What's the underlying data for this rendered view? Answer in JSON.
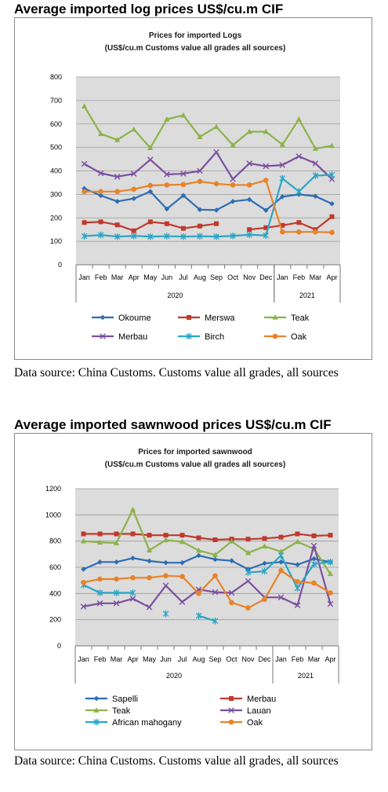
{
  "sections": [
    {
      "heading": "Average imported log prices US$/cu.m CIF",
      "source": "Data source: China Customs. Customs value all grades, all sources",
      "chart_data": {
        "type": "line",
        "title": "Prices for imported Logs",
        "subtitle": "(US$/cu.m Customs value all grades all sources)",
        "categories": [
          "Jan",
          "Feb",
          "Mar",
          "Apr",
          "May",
          "Jun",
          "Jul",
          "Aug",
          "Sep",
          "Oct",
          "Nov",
          "Dec",
          "Jan",
          "Feb",
          "Mar",
          "Apr"
        ],
        "year_groups": [
          {
            "label": "2020",
            "start": 0,
            "end": 11
          },
          {
            "label": "2021",
            "start": 12,
            "end": 15
          }
        ],
        "ylim": [
          0,
          800
        ],
        "yticks": [
          "0",
          "100",
          "200",
          "300",
          "400",
          "500",
          "600",
          "700",
          "800"
        ],
        "grid": true,
        "legend_position": "bottom",
        "series": [
          {
            "name": "Okoume",
            "color": "#2e6db4",
            "marker": "diamond",
            "values": [
              325,
              295,
              270,
              282,
              312,
              238,
              295,
              235,
              233,
              270,
              278,
              232,
              290,
              300,
              292,
              260
            ]
          },
          {
            "name": "Merswa",
            "color": "#c0392b",
            "marker": "square",
            "values": [
              180,
              183,
              170,
              145,
              183,
              175,
              155,
              165,
              175,
              null,
              150,
              158,
              168,
              180,
              150,
              205
            ]
          },
          {
            "name": "Teak",
            "color": "#8bb34a",
            "marker": "triangle",
            "values": [
              675,
              558,
              532,
              577,
              498,
              620,
              637,
              545,
              588,
              510,
              567,
              567,
              512,
              620,
              495,
              507
            ]
          },
          {
            "name": "Merbau",
            "color": "#7b4fa0",
            "marker": "x",
            "values": [
              430,
              390,
              375,
              388,
              448,
              385,
              388,
              400,
              480,
              365,
              432,
              420,
              425,
              462,
              432,
              365
            ]
          },
          {
            "name": "Birch",
            "color": "#2aa5c4",
            "marker": "star",
            "values": [
              122,
              127,
              120,
              123,
              120,
              122,
              120,
              122,
              120,
              123,
              128,
              125,
              368,
              312,
              380,
              383
            ]
          },
          {
            "name": "Oak",
            "color": "#e8832a",
            "marker": "circle",
            "values": [
              312,
              312,
              312,
              322,
              338,
              340,
              342,
              355,
              345,
              340,
              340,
              360,
              140,
              140,
              140,
              138
            ]
          }
        ]
      }
    },
    {
      "heading": "Average imported sawnwood prices US$/cu.m CIF",
      "source": "Data source: China Customs. Customs value all grades, all sources",
      "chart_data": {
        "type": "line",
        "title": "Prices for imported sawnwood",
        "subtitle": "(US$/cu.m Customs value all grades all sources)",
        "categories": [
          "Jan",
          "Feb",
          "Mar",
          "Apr",
          "May",
          "Jun",
          "Jul",
          "Aug",
          "Sep",
          "Oct",
          "Nov",
          "Dec",
          "Jan",
          "Feb",
          "Mar",
          "Apr"
        ],
        "year_groups": [
          {
            "label": "2020",
            "start": 0,
            "end": 11
          },
          {
            "label": "2021",
            "start": 12,
            "end": 15
          }
        ],
        "ylim": [
          0,
          1200
        ],
        "yticks": [
          "0",
          "200",
          "400",
          "600",
          "800",
          "1000",
          "1200"
        ],
        "grid": true,
        "legend_position": "bottom",
        "series": [
          {
            "name": "Sapelli",
            "color": "#2e6db4",
            "marker": "diamond",
            "values": [
              585,
              640,
              640,
              670,
              648,
              635,
              635,
              690,
              660,
              650,
              585,
              630,
              640,
              620,
              665,
              640
            ]
          },
          {
            "name": "Merbau",
            "color": "#c0392b",
            "marker": "square",
            "values": [
              855,
              855,
              855,
              855,
              845,
              845,
              845,
              825,
              810,
              815,
              815,
              820,
              830,
              855,
              840,
              845
            ]
          },
          {
            "name": "Teak",
            "color": "#8bb34a",
            "marker": "triangle",
            "values": [
              800,
              790,
              785,
              1040,
              730,
              808,
              795,
              728,
              695,
              798,
              710,
              760,
              720,
              795,
              740,
              550
            ]
          },
          {
            "name": "Lauan",
            "color": "#7b4fa0",
            "marker": "x",
            "values": [
              300,
              325,
              325,
              360,
              295,
              460,
              335,
              430,
              410,
              405,
              495,
              370,
              370,
              310,
              765,
              320
            ]
          },
          {
            "name": "African mahogany",
            "color": "#2aa5c4",
            "marker": "star",
            "values": [
              465,
              405,
              405,
              405,
              null,
              245,
              null,
              230,
              190,
              null,
              560,
              570,
              690,
              440,
              625,
              640
            ]
          },
          {
            "name": "Oak",
            "color": "#e8832a",
            "marker": "circle",
            "values": [
              485,
              510,
              510,
              520,
              520,
              535,
              530,
              400,
              535,
              330,
              290,
              355,
              575,
              490,
              480,
              405
            ]
          }
        ]
      }
    }
  ]
}
